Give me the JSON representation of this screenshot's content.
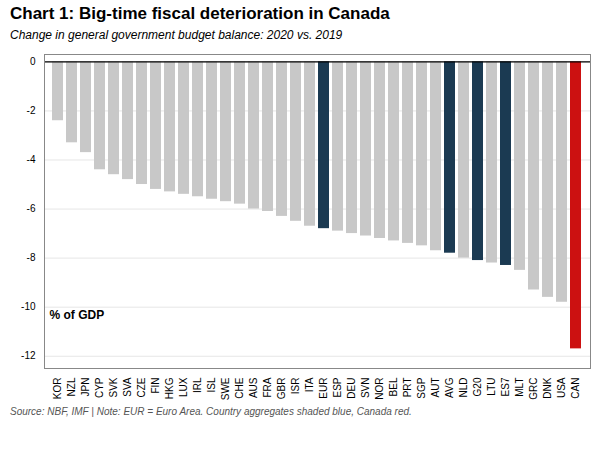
{
  "chart_data": {
    "type": "bar",
    "title": "Chart 1: Big-time fiscal deterioration in Canada",
    "subtitle": "Change in general government budget balance: 2020 vs. 2019",
    "footnote": "Source: NBF, IMF | Note: EUR = Euro Area. Country aggregates shaded blue, Canada red.",
    "annotations": [
      "% of GDP"
    ],
    "categories": [
      "KOR",
      "NZL",
      "JPN",
      "CYP",
      "SVK",
      "SVA",
      "CZE",
      "FIN",
      "HKG",
      "LUX",
      "IRL",
      "ISL",
      "SWE",
      "CHE",
      "AUS",
      "FRA",
      "GBR",
      "ISR",
      "ITA",
      "EUR",
      "ESP",
      "DEU",
      "SVN",
      "NOR",
      "BEL",
      "PRT",
      "SGP",
      "AUT",
      "AVG",
      "NLD",
      "G20",
      "LTU",
      "ES7",
      "MLT",
      "GRC",
      "DNK",
      "USA",
      "CAN"
    ],
    "values": [
      -2.4,
      -3.3,
      -3.7,
      -4.4,
      -4.6,
      -4.8,
      -5.0,
      -5.2,
      -5.3,
      -5.4,
      -5.5,
      -5.6,
      -5.7,
      -5.8,
      -6.0,
      -6.1,
      -6.3,
      -6.5,
      -6.7,
      -6.8,
      -6.9,
      -7.0,
      -7.1,
      -7.2,
      -7.3,
      -7.4,
      -7.5,
      -7.7,
      -7.8,
      -8.0,
      -8.1,
      -8.2,
      -8.3,
      -8.5,
      -9.3,
      -9.6,
      -9.8,
      -11.7
    ],
    "colors": [
      "#c8c8c8",
      "#c8c8c8",
      "#c8c8c8",
      "#c8c8c8",
      "#c8c8c8",
      "#c8c8c8",
      "#c8c8c8",
      "#c8c8c8",
      "#c8c8c8",
      "#c8c8c8",
      "#c8c8c8",
      "#c8c8c8",
      "#c8c8c8",
      "#c8c8c8",
      "#c8c8c8",
      "#c8c8c8",
      "#c8c8c8",
      "#c8c8c8",
      "#c8c8c8",
      "#1b3a52",
      "#c8c8c8",
      "#c8c8c8",
      "#c8c8c8",
      "#c8c8c8",
      "#c8c8c8",
      "#c8c8c8",
      "#c8c8c8",
      "#c8c8c8",
      "#1b3a52",
      "#c8c8c8",
      "#1b3a52",
      "#c8c8c8",
      "#1b3a52",
      "#c8c8c8",
      "#c8c8c8",
      "#c8c8c8",
      "#c8c8c8",
      "#cc1111"
    ],
    "ylim": [
      -12.5,
      0.3
    ],
    "yticks": [
      0,
      -2,
      -4,
      -6,
      -8,
      -10,
      -12
    ],
    "grid": true
  }
}
